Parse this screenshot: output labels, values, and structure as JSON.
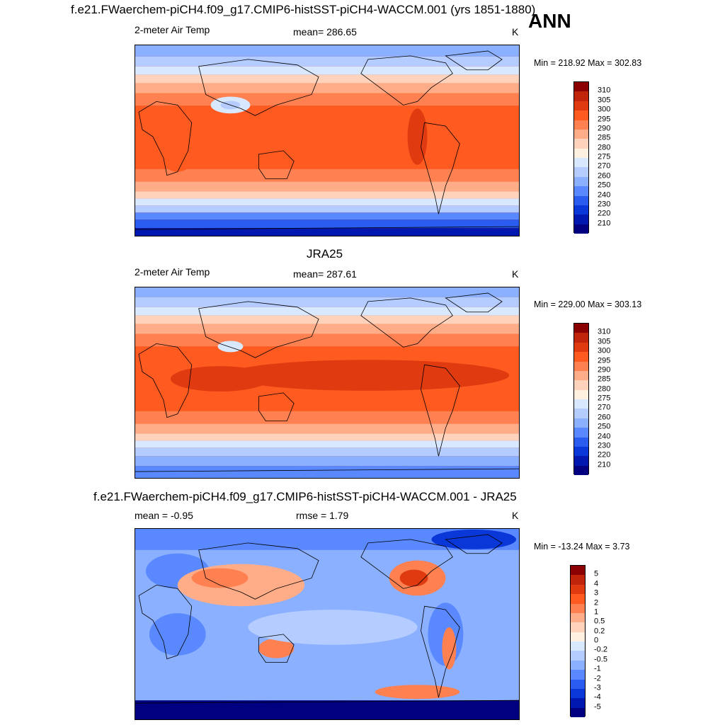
{
  "figure": {
    "main_title": "f.e21.FWaerchem-piCH4.f09_g17.CMIP6-histSST-piCH4-WACCM.001 (yrs 1851-1880)",
    "season_label": "ANN"
  },
  "panels": [
    {
      "title": "",
      "left_label": "2-meter Air Temp",
      "center_label": "mean= 286.65",
      "units": "K",
      "minmax": "Min = 218.92 Max = 302.83"
    },
    {
      "title": "JRA25",
      "left_label": "2-meter Air Temp",
      "center_label": "mean= 287.61",
      "units": "K",
      "minmax": "Min = 229.00 Max = 303.13"
    },
    {
      "title": "f.e21.FWaerchem-piCH4.f09_g17.CMIP6-histSST-piCH4-WACCM.001 - JRA25",
      "left_label": "mean =  -0.95",
      "center_label": "rmse =   1.79",
      "units": "K",
      "minmax": "Min = -13.24 Max =   3.73"
    }
  ],
  "colorbars": {
    "temperature": {
      "levels": [
        "310",
        "305",
        "300",
        "295",
        "290",
        "285",
        "280",
        "275",
        "270",
        "260",
        "250",
        "240",
        "230",
        "220",
        "210"
      ],
      "colors": [
        "#8b0000",
        "#c0240a",
        "#e03a10",
        "#ff5a20",
        "#ff8050",
        "#ffac88",
        "#ffd2bc",
        "#fff0e0",
        "#d8e8ff",
        "#b4ccff",
        "#8ab0ff",
        "#5a88ff",
        "#2a5cf0",
        "#0a38d8",
        "#0018b0",
        "#000080"
      ]
    },
    "difference": {
      "levels": [
        "5",
        "4",
        "3",
        "2",
        "1",
        "0.5",
        "0.2",
        "0",
        "-0.2",
        "-0.5",
        "-1",
        "-2",
        "-3",
        "-4",
        "-5"
      ],
      "colors": [
        "#8b0000",
        "#c0240a",
        "#e03a10",
        "#ff5a20",
        "#ff8050",
        "#ffac88",
        "#ffd2bc",
        "#fff0e0",
        "#d8e8ff",
        "#b4ccff",
        "#8ab0ff",
        "#5a88ff",
        "#2a5cf0",
        "#0a38d8",
        "#0018b0",
        "#000080"
      ]
    }
  }
}
